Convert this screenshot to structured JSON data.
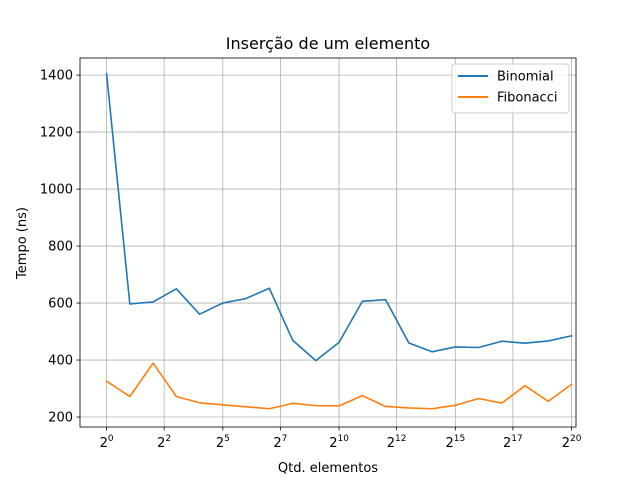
{
  "chart_data": {
    "type": "line",
    "title": "Inserção de um elemento",
    "xlabel": "Qtd. elementos",
    "ylabel": "Tempo (ns)",
    "x_scale": "log2",
    "xlim_exponent": [
      -1.2,
      21.2
    ],
    "ylim": [
      165,
      1460
    ],
    "grid": true,
    "legend_position": "upper right",
    "x_ticks": [
      {
        "base": "2",
        "exp": "0",
        "value": 0
      },
      {
        "base": "2",
        "exp": "2",
        "value": 2.6
      },
      {
        "base": "2",
        "exp": "5",
        "value": 5.25
      },
      {
        "base": "2",
        "exp": "7",
        "value": 7.85
      },
      {
        "base": "2",
        "exp": "10",
        "value": 10.5
      },
      {
        "base": "2",
        "exp": "12",
        "value": 13.1
      },
      {
        "base": "2",
        "exp": "15",
        "value": 15.75
      },
      {
        "base": "2",
        "exp": "17",
        "value": 18.35
      },
      {
        "base": "2",
        "exp": "20",
        "value": 21.0
      }
    ],
    "y_ticks": [
      {
        "label": "200",
        "value": 200
      },
      {
        "label": "400",
        "value": 400
      },
      {
        "label": "600",
        "value": 600
      },
      {
        "label": "800",
        "value": 800
      },
      {
        "label": "1000",
        "value": 1000
      },
      {
        "label": "1200",
        "value": 1200
      },
      {
        "label": "1400",
        "value": 1400
      }
    ],
    "x_exponents": [
      0,
      1.05,
      2.1,
      3.15,
      4.2,
      5.25,
      6.3,
      7.35,
      8.4,
      9.45,
      10.5,
      11.55,
      12.6,
      13.65,
      14.7,
      15.75,
      16.8,
      17.85,
      18.9,
      19.95,
      21.0
    ],
    "series": [
      {
        "name": "Binomial",
        "color": "#1f77b4",
        "values": [
          1405,
          597,
          604,
          650,
          561,
          600,
          616,
          652,
          470,
          398,
          462,
          606,
          612,
          460,
          429,
          446,
          444,
          466,
          459,
          467,
          485
        ]
      },
      {
        "name": "Fibonacci",
        "color": "#ff7f0e",
        "values": [
          326,
          272,
          389,
          272,
          250,
          243,
          236,
          229,
          248,
          240,
          239,
          275,
          237,
          232,
          229,
          241,
          265,
          249,
          310,
          255,
          315
        ]
      }
    ]
  }
}
